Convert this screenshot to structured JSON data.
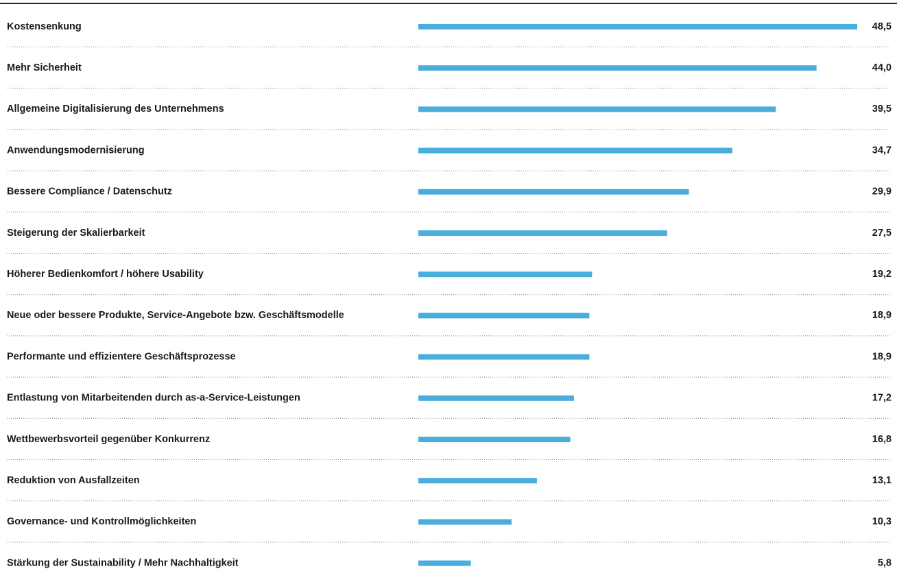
{
  "chart_data": {
    "type": "bar",
    "orientation": "horizontal",
    "color": "#4aaedc",
    "categories": [
      "Kostensenkung",
      "Mehr Sicherheit",
      "Allgemeine Digitalisierung des Unternehmens",
      "Anwendungsmodernisierung",
      "Bessere Compliance / Datenschutz",
      "Steigerung der Skalierbarkeit",
      "Höherer Bedienkomfort / höhere Usability",
      "Neue oder bessere Produkte, Service-Angebote bzw. Geschäftsmodelle",
      "Performante und effizientere Geschäftsprozesse",
      "Entlastung von Mitarbeitenden durch as-a-Service-Leistungen",
      "Wettbewerbsvorteil gegenüber Konkurrenz",
      "Reduktion von Ausfallzeiten",
      "Governance- und Kontrollmöglichkeiten",
      "Stärkung der Sustainability / Mehr Nachhaltigkeit"
    ],
    "values": [
      48.5,
      44.0,
      39.5,
      34.7,
      29.9,
      27.5,
      19.2,
      18.9,
      18.9,
      17.2,
      16.8,
      13.1,
      10.3,
      5.8
    ],
    "value_labels": [
      "48,5",
      "44,0",
      "39,5",
      "34,7",
      "29,9",
      "27,5",
      "19,2",
      "18,9",
      "18,9",
      "17,2",
      "16,8",
      "13,1",
      "10,3",
      "5,8"
    ]
  }
}
